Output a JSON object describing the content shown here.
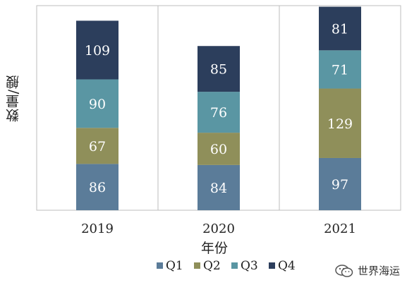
{
  "chart_data": {
    "type": "bar",
    "stacked": true,
    "categories": [
      "2019",
      "2020",
      "2021"
    ],
    "series": [
      {
        "name": "Q1",
        "values": [
          86,
          84,
          97
        ],
        "color": "#5b7c99"
      },
      {
        "name": "Q2",
        "values": [
          67,
          60,
          129
        ],
        "color": "#8f8f5a"
      },
      {
        "name": "Q3",
        "values": [
          90,
          76,
          71
        ],
        "color": "#5a96a3"
      },
      {
        "name": "Q4",
        "values": [
          109,
          85,
          81
        ],
        "color": "#2c3e5c"
      }
    ],
    "xlabel": "年份",
    "ylabel": "数量/艘",
    "ylim": [
      0,
      380
    ],
    "grid": "vertical separators between categories",
    "legend_position": "bottom"
  },
  "watermark": {
    "text": "世界海运",
    "icon": "wechat-icon"
  }
}
